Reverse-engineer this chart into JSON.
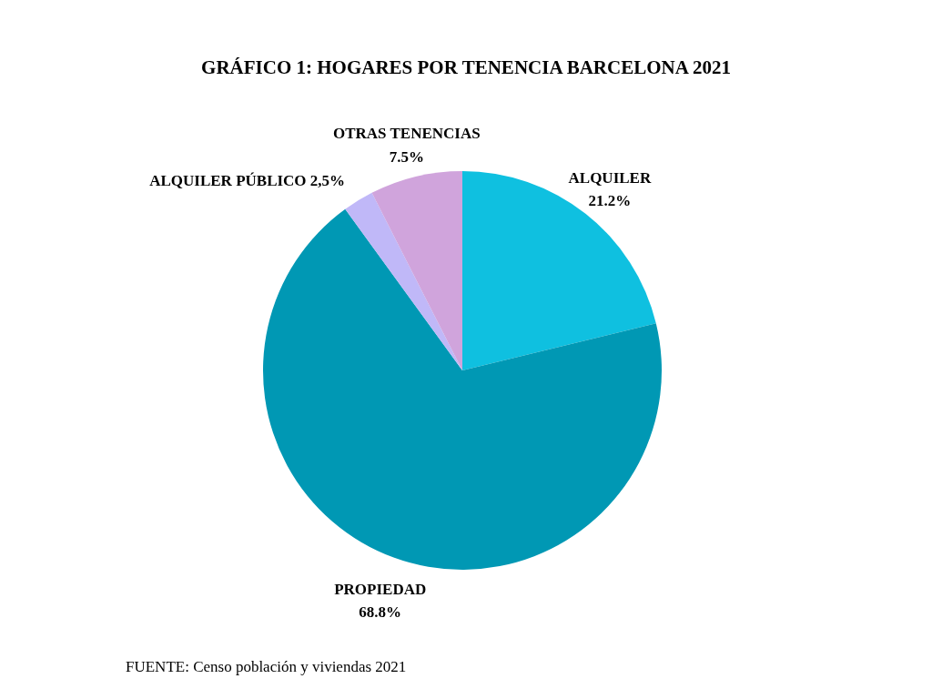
{
  "chart_data": {
    "type": "pie",
    "title": "GRÁFICO 1: HOGARES POR TENENCIA BARCELONA 2021",
    "categories": [
      "ALQUILER",
      "PROPIEDAD",
      "ALQUILER PÚBLICO",
      "OTRAS TENENCIAS"
    ],
    "values": [
      21.2,
      68.8,
      2.5,
      7.5
    ],
    "value_labels": [
      "21.2%",
      "68.8%",
      "2,5%",
      "7.5%"
    ],
    "colors": [
      "#0fc0e0",
      "#0098b4",
      "#c0b8f8",
      "#d0a4dc"
    ],
    "annotations": [
      "FUENTE: Censo población y viviendas 2021"
    ]
  }
}
